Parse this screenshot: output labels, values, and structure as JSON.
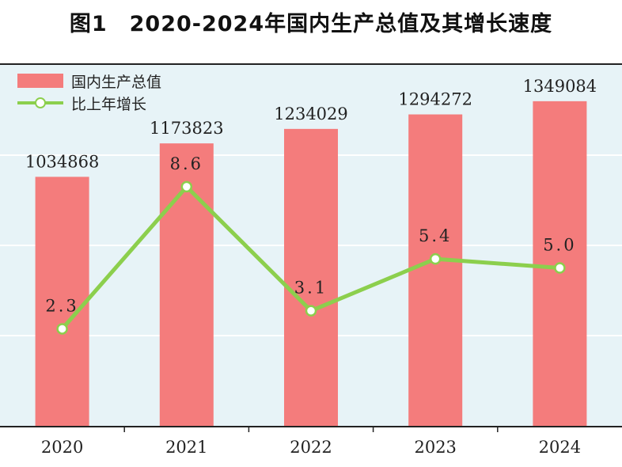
{
  "chart_data": {
    "type": "bar",
    "title": "图1　2020-2024年国内生产总值及其增长速度",
    "categories": [
      "2020",
      "2021",
      "2022",
      "2023",
      "2024"
    ],
    "series": [
      {
        "name": "国内生产总值",
        "type": "bar",
        "values": [
          1034868,
          1173823,
          1234029,
          1294272,
          1349084
        ],
        "color": "#f47c7c"
      },
      {
        "name": "比上年增长",
        "type": "line",
        "values": [
          2.3,
          8.6,
          3.1,
          5.4,
          5.0
        ],
        "color": "#8ccf4d"
      }
    ],
    "bar_value_range": [
      0,
      1500000
    ],
    "line_value_range": [
      -2,
      14
    ],
    "grid": true,
    "legend_position": "top-left",
    "background_color": "#e7f3f7"
  }
}
